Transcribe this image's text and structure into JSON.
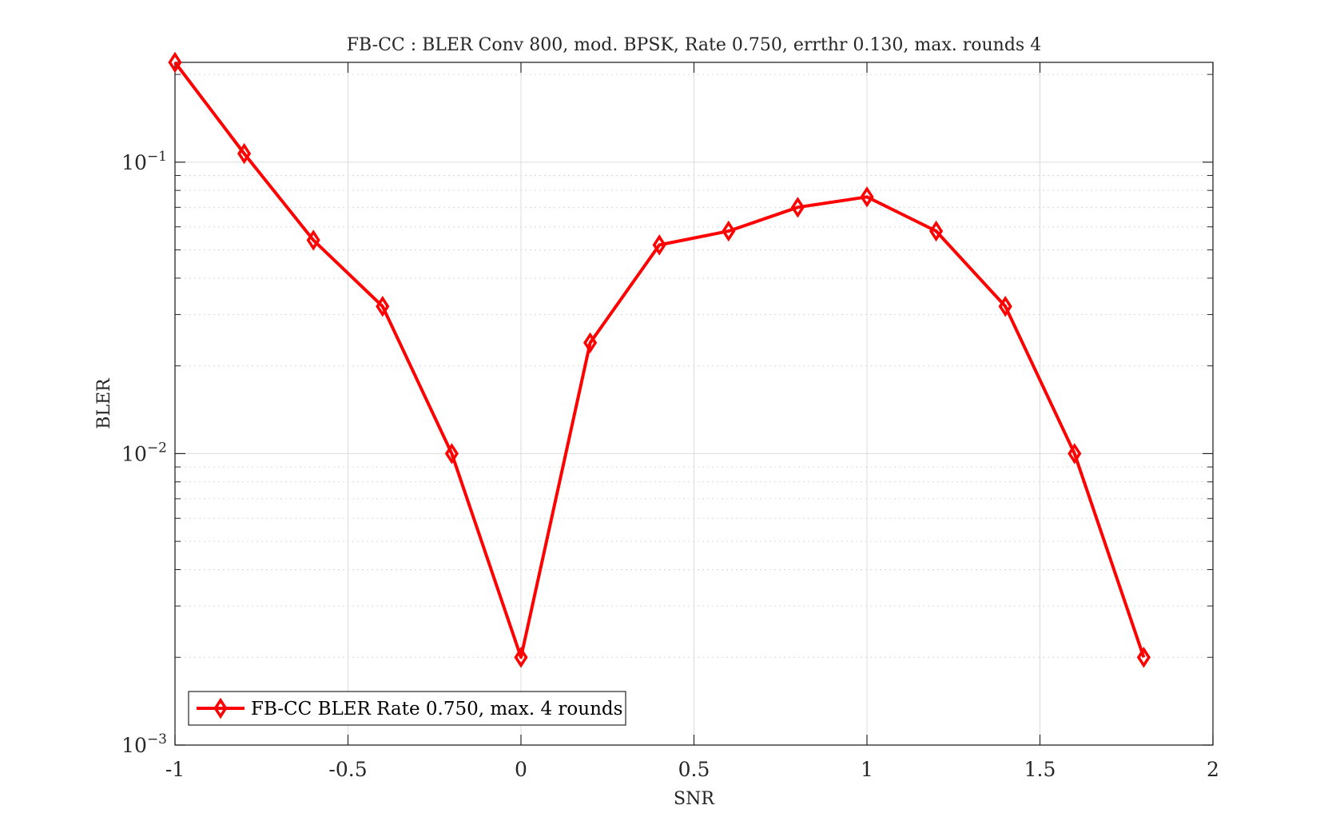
{
  "chart_data": {
    "type": "line",
    "title": "FB-CC : BLER Conv 800, mod. BPSK, Rate 0.750, errthr 0.130, max. rounds 4",
    "xlabel": "SNR",
    "ylabel": "BLER",
    "xscale": "linear",
    "yscale": "log",
    "xlim": [
      -1,
      2
    ],
    "ylim": [
      0.001,
      0.22
    ],
    "x_ticks": [
      -1,
      -0.5,
      0,
      0.5,
      1,
      1.5,
      2
    ],
    "x_tick_labels": [
      "-1",
      "-0.5",
      "0",
      "0.5",
      "1",
      "1.5",
      "2"
    ],
    "y_ticks": [
      0.001,
      0.01,
      0.1
    ],
    "y_tick_labels": [
      {
        "base": "10",
        "exp": "−3"
      },
      {
        "base": "10",
        "exp": "−2"
      },
      {
        "base": "10",
        "exp": "−1"
      }
    ],
    "grid": true,
    "minor_grid": true,
    "legend_position": "bottom-left",
    "series": [
      {
        "name": "FB-CC BLER Rate 0.750, max. 4 rounds",
        "color": "#ff0000",
        "marker": "diamond",
        "x": [
          -1,
          -0.8,
          -0.6,
          -0.4,
          -0.2,
          0,
          0.2,
          0.4,
          0.6,
          0.8,
          1.0,
          1.2,
          1.4,
          1.6,
          1.8
        ],
        "y": [
          0.22,
          0.107,
          0.054,
          0.032,
          0.01,
          0.002,
          0.024,
          0.052,
          0.058,
          0.07,
          0.076,
          0.058,
          0.032,
          0.01,
          0.002
        ]
      }
    ]
  }
}
